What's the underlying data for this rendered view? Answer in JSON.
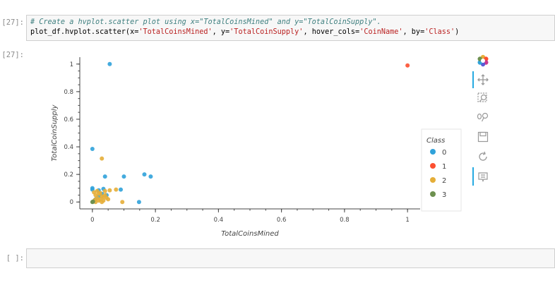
{
  "cells": {
    "input_prompt": "[27]:",
    "output_prompt": "[27]:",
    "empty_prompt": "[ ]:",
    "comment": "# Create a hvplot.scatter plot using x=\"TotalCoinsMined\" and y=\"TotalCoinSupply\".",
    "code_prefix": "plot_df.hvplot.scatter(x=",
    "code_x": "'TotalCoinsMined'",
    "code_y_kw": ", y=",
    "code_y": "'TotalCoinSupply'",
    "code_hover_kw": ", hover_cols=",
    "code_hover": "'CoinName'",
    "code_by_kw": ", by=",
    "code_by": "'Class'",
    "code_suffix": ")"
  },
  "toolbar": {
    "icons": [
      "bokeh-logo-icon",
      "pan-icon",
      "box-zoom-icon",
      "wheel-zoom-icon",
      "save-icon",
      "reset-icon",
      "hover-icon"
    ]
  },
  "chart_data": {
    "type": "scatter",
    "xlabel": "TotalCoinsMined",
    "ylabel": "TotalCoinSupply",
    "xlim": [
      -0.04,
      1.04
    ],
    "ylim": [
      -0.05,
      1.05
    ],
    "x_ticks": [
      0,
      0.2,
      0.4,
      0.6,
      0.8,
      1
    ],
    "x_tick_labels": [
      "0",
      "0.2",
      "0.4",
      "0.6",
      "0.8",
      "1"
    ],
    "y_ticks": [
      0,
      0.2,
      0.4,
      0.6,
      0.8,
      1
    ],
    "y_tick_labels": [
      "0",
      "0.2",
      "0.4",
      "0.6",
      "0.8",
      "1"
    ],
    "grid": false,
    "legend": {
      "title": "Class",
      "placement": "right",
      "entries": [
        "0",
        "1",
        "2",
        "3"
      ]
    },
    "series": [
      {
        "name": "0",
        "color": "#30a2da",
        "points": [
          [
            0.055,
            1.0
          ],
          [
            0.0,
            0.385
          ],
          [
            0.04,
            0.185
          ],
          [
            0.1,
            0.185
          ],
          [
            0.165,
            0.2
          ],
          [
            0.185,
            0.185
          ],
          [
            0.0,
            0.1
          ],
          [
            0.0,
            0.09
          ],
          [
            0.02,
            0.085
          ],
          [
            0.035,
            0.095
          ],
          [
            0.09,
            0.09
          ],
          [
            0.148,
            0.0
          ],
          [
            0.01,
            0.02
          ],
          [
            0.02,
            0.04
          ],
          [
            0.03,
            0.06
          ],
          [
            0.045,
            0.05
          ]
        ]
      },
      {
        "name": "1",
        "color": "#fc4f30",
        "points": [
          [
            1.0,
            0.99
          ]
        ]
      },
      {
        "name": "2",
        "color": "#e5ae38",
        "points": [
          [
            0.03,
            0.315
          ],
          [
            0.005,
            0.07
          ],
          [
            0.01,
            0.05
          ],
          [
            0.015,
            0.03
          ],
          [
            0.02,
            0.06
          ],
          [
            0.025,
            0.02
          ],
          [
            0.03,
            0.04
          ],
          [
            0.035,
            0.01
          ],
          [
            0.04,
            0.08
          ],
          [
            0.045,
            0.03
          ],
          [
            0.05,
            0.02
          ],
          [
            0.055,
            0.085
          ],
          [
            0.075,
            0.09
          ],
          [
            0.095,
            0.0
          ],
          [
            0.01,
            0.0
          ],
          [
            0.02,
            0.01
          ],
          [
            0.03,
            0.0
          ],
          [
            0.04,
            0.05
          ],
          [
            0.015,
            0.08
          ],
          [
            0.025,
            0.065
          ],
          [
            0.035,
            0.035
          ],
          [
            0.008,
            0.015
          ]
        ]
      },
      {
        "name": "3",
        "color": "#6d904f",
        "points": [
          [
            0.0,
            0.0
          ],
          [
            0.002,
            0.003
          ],
          [
            0.001,
            0.001
          ]
        ]
      }
    ]
  }
}
